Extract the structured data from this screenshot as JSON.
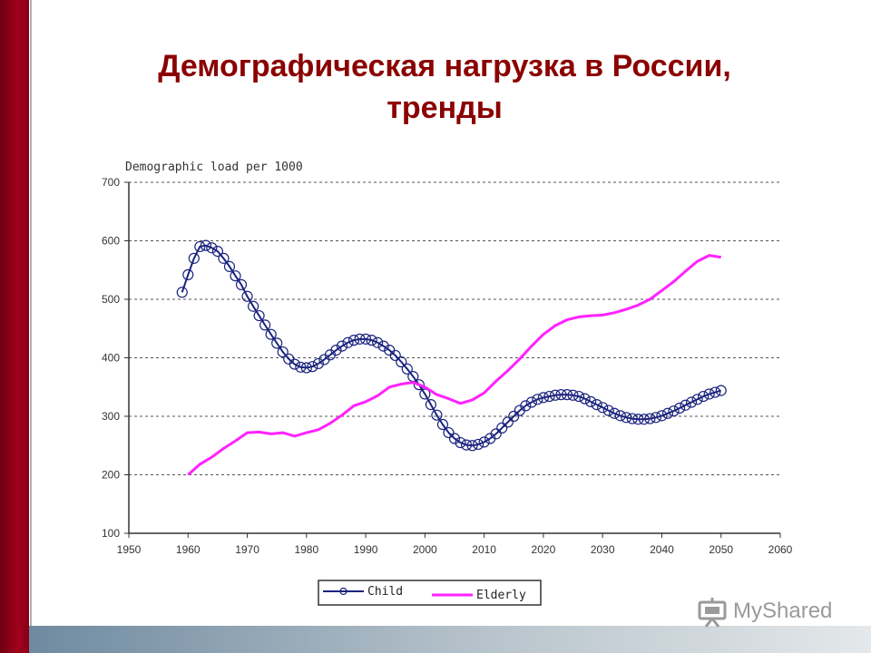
{
  "title": {
    "line1": "Демографическая нагрузка в России,",
    "line2": "тренды"
  },
  "watermark": {
    "brand": "MyShared"
  },
  "colors": {
    "child": "#1a237e",
    "elderly": "#ff22ff",
    "title": "#8b0000"
  },
  "chart_data": {
    "type": "line",
    "title": "Demographic load per 1000",
    "xlabel": "",
    "ylabel": "",
    "xlim": [
      1950,
      2060
    ],
    "ylim": [
      100,
      700
    ],
    "x_ticks": [
      1950,
      1960,
      1970,
      1980,
      1990,
      2000,
      2010,
      2020,
      2030,
      2040,
      2050,
      2060
    ],
    "y_ticks": [
      100,
      200,
      300,
      400,
      500,
      600,
      700
    ],
    "grid": "horizontal dashed",
    "legend": "bottom-center",
    "series": [
      {
        "name": "Child",
        "color": "#1a237e",
        "marker": "circle",
        "x": [
          1959,
          1960,
          1961,
          1962,
          1963,
          1964,
          1965,
          1966,
          1967,
          1968,
          1969,
          1970,
          1971,
          1972,
          1973,
          1974,
          1975,
          1976,
          1977,
          1978,
          1979,
          1980,
          1981,
          1982,
          1983,
          1984,
          1985,
          1986,
          1987,
          1988,
          1989,
          1990,
          1991,
          1992,
          1993,
          1994,
          1995,
          1996,
          1997,
          1998,
          1999,
          2000,
          2001,
          2002,
          2003,
          2004,
          2005,
          2006,
          2007,
          2008,
          2009,
          2010,
          2011,
          2012,
          2013,
          2014,
          2015,
          2016,
          2017,
          2018,
          2019,
          2020,
          2021,
          2022,
          2023,
          2024,
          2025,
          2026,
          2027,
          2028,
          2029,
          2030,
          2031,
          2032,
          2033,
          2034,
          2035,
          2036,
          2037,
          2038,
          2039,
          2040,
          2041,
          2042,
          2043,
          2044,
          2045,
          2046,
          2047,
          2048,
          2049,
          2050
        ],
        "y": [
          512,
          542,
          570,
          590,
          592,
          588,
          582,
          570,
          556,
          540,
          525,
          505,
          488,
          472,
          456,
          440,
          425,
          410,
          398,
          389,
          384,
          383,
          385,
          390,
          397,
          405,
          413,
          420,
          426,
          430,
          432,
          432,
          430,
          426,
          420,
          413,
          404,
          393,
          381,
          368,
          354,
          338,
          320,
          302,
          286,
          272,
          262,
          255,
          251,
          250,
          252,
          256,
          262,
          270,
          280,
          290,
          300,
          310,
          318,
          324,
          329,
          332,
          334,
          336,
          337,
          337,
          336,
          334,
          330,
          325,
          320,
          315,
          310,
          305,
          301,
          298,
          296,
          295,
          295,
          296,
          298,
          301,
          305,
          309,
          314,
          319,
          324,
          329,
          334,
          338,
          341,
          344
        ]
      },
      {
        "name": "Elderly",
        "color": "#ff22ff",
        "marker": "none",
        "x": [
          1960,
          1962,
          1964,
          1966,
          1968,
          1970,
          1972,
          1974,
          1976,
          1978,
          1980,
          1982,
          1984,
          1986,
          1988,
          1990,
          1992,
          1994,
          1996,
          1998,
          2000,
          2002,
          2004,
          2006,
          2008,
          2010,
          2012,
          2014,
          2016,
          2018,
          2020,
          2022,
          2024,
          2026,
          2028,
          2030,
          2032,
          2034,
          2036,
          2038,
          2040,
          2042,
          2044,
          2046,
          2048,
          2050
        ],
        "y": [
          200,
          218,
          230,
          245,
          258,
          272,
          273,
          270,
          272,
          266,
          272,
          277,
          288,
          302,
          318,
          325,
          335,
          350,
          355,
          358,
          350,
          337,
          330,
          322,
          328,
          340,
          360,
          378,
          398,
          420,
          440,
          455,
          465,
          470,
          472,
          473,
          477,
          483,
          490,
          500,
          515,
          530,
          548,
          565,
          575,
          572
        ]
      }
    ]
  }
}
